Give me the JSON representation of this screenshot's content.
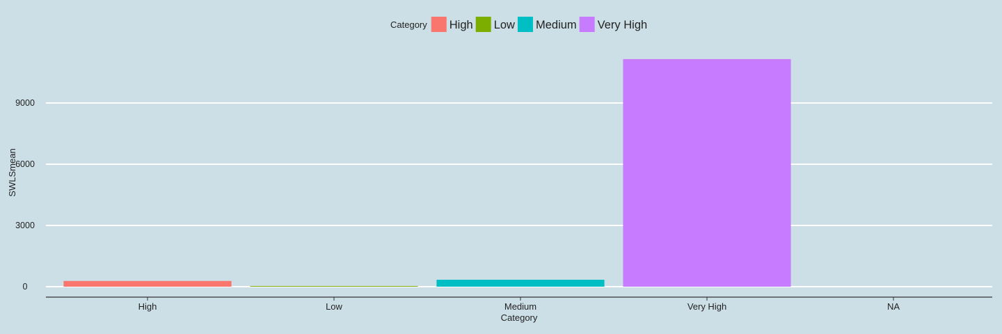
{
  "chart_data": {
    "type": "bar",
    "title": "",
    "xlabel": "Category",
    "ylabel": "SWLSmean",
    "categories": [
      "High",
      "Low",
      "Medium",
      "Very High",
      "NA"
    ],
    "values": [
      280,
      10,
      340,
      11150,
      null
    ],
    "colors": [
      "#f8766d",
      "#7cae00",
      "#00bfc4",
      "#c77cff",
      null
    ],
    "ylim": [
      0,
      11200
    ],
    "yticks": [
      0,
      3000,
      6000,
      9000
    ],
    "ytick_labels": [
      "0",
      "3000",
      "6000",
      "9000"
    ],
    "grid": "horizontal major lines",
    "legend": {
      "title": "Category",
      "position": "top",
      "items": [
        {
          "label": "High",
          "color": "#f8766d"
        },
        {
          "label": "Low",
          "color": "#7cae00"
        },
        {
          "label": "Medium",
          "color": "#00bfc4"
        },
        {
          "label": "Very High",
          "color": "#c77cff"
        }
      ]
    }
  },
  "colors": {
    "background": "#cddfe6",
    "gridline": "#ffffff",
    "axis": "#333333",
    "text": "#222222"
  }
}
